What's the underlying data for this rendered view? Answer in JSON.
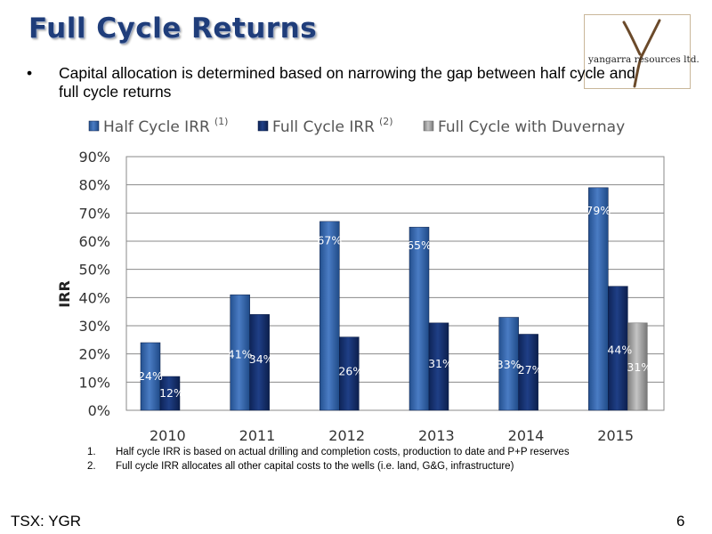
{
  "slide": {
    "title": "Full Cycle Returns",
    "bullet": "Capital allocation is determined based on narrowing the gap between half cycle and full cycle returns",
    "logo_text": "yangarra resources ltd.",
    "footnotes": [
      {
        "num": "1.",
        "text": "Half cycle IRR is based on actual drilling and completion costs, production to date and P+P reserves"
      },
      {
        "num": "2.",
        "text": "Full cycle IRR allocates all other capital costs to the wells (i.e. land, G&G, infrastructure)"
      }
    ],
    "footer_left": "TSX: YGR",
    "page_number": "6"
  },
  "chart_data": {
    "type": "bar",
    "title": "",
    "xlabel": "",
    "ylabel": "IRR",
    "categories": [
      "2010",
      "2011",
      "2012",
      "2013",
      "2014",
      "2015"
    ],
    "ylim": [
      0,
      90
    ],
    "yticks": [
      0,
      10,
      20,
      30,
      40,
      50,
      60,
      70,
      80,
      90
    ],
    "ytick_labels": [
      "0%",
      "10%",
      "20%",
      "30%",
      "40%",
      "50%",
      "60%",
      "70%",
      "80%",
      "90%"
    ],
    "grid": true,
    "legend": "top",
    "series": [
      {
        "name": "Half Cycle IRR",
        "superscript": "(1)",
        "color": "#2e5fa6",
        "values": [
          24,
          41,
          67,
          65,
          33,
          79
        ],
        "labels": [
          "24%",
          "41%",
          "67%",
          "65%",
          "33%",
          "79%"
        ]
      },
      {
        "name": "Full Cycle IRR",
        "superscript": "(2)",
        "color": "#13306e",
        "values": [
          12,
          34,
          26,
          31,
          27,
          44
        ],
        "labels": [
          "12%",
          "34%",
          "26%",
          "31%",
          "27%",
          "44%"
        ]
      },
      {
        "name": "Full Cycle with Duvernay",
        "superscript": "",
        "color": "#9a9a9a",
        "values": [
          null,
          null,
          null,
          null,
          null,
          31
        ],
        "labels": [
          "",
          "",
          "",
          "",
          "",
          "31%"
        ]
      }
    ]
  }
}
